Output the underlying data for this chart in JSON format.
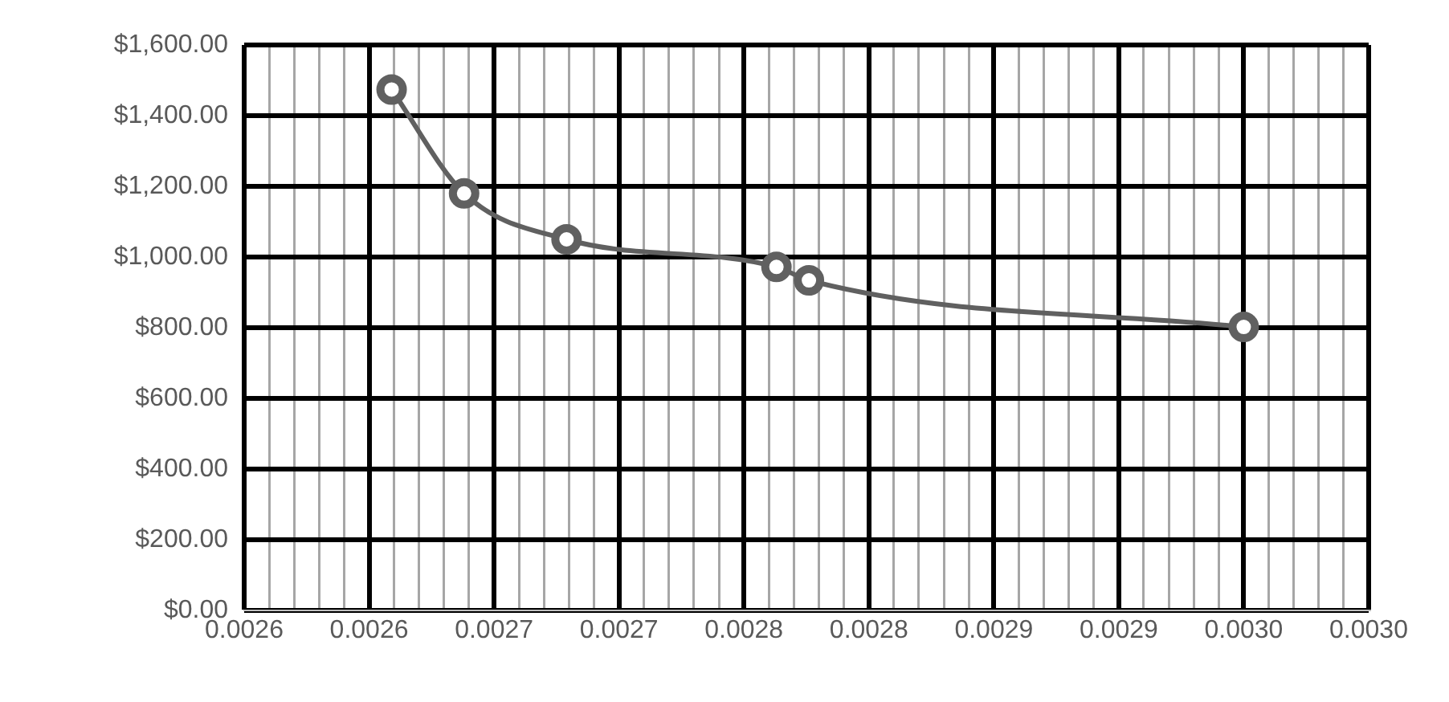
{
  "chart_data": {
    "type": "line",
    "marker": "circle",
    "line_style": "solid",
    "grid": true,
    "legend": false,
    "x": [
      0.002609,
      0.002638,
      0.002679,
      0.002763,
      0.002776,
      0.00295
    ],
    "series": [
      {
        "color": "#606060",
        "values": [
          1474,
          1180,
          1050,
          972,
          934,
          802
        ]
      }
    ],
    "xlim": [
      0.00255,
      0.003
    ],
    "xticks": [
      {
        "value": 0.00255,
        "label": "0.0026"
      },
      {
        "value": 0.00256,
        "label": null
      },
      {
        "value": 0.00257,
        "label": null
      },
      {
        "value": 0.00258,
        "label": null
      },
      {
        "value": 0.00259,
        "label": null
      },
      {
        "value": 0.0026,
        "label": "0.0026"
      },
      {
        "value": 0.00261,
        "label": null
      },
      {
        "value": 0.00262,
        "label": null
      },
      {
        "value": 0.00263,
        "label": null
      },
      {
        "value": 0.00264,
        "label": null
      },
      {
        "value": 0.00265,
        "label": "0.0027"
      },
      {
        "value": 0.00266,
        "label": null
      },
      {
        "value": 0.00267,
        "label": null
      },
      {
        "value": 0.00268,
        "label": null
      },
      {
        "value": 0.00269,
        "label": null
      },
      {
        "value": 0.0027,
        "label": "0.0027"
      },
      {
        "value": 0.00271,
        "label": null
      },
      {
        "value": 0.00272,
        "label": null
      },
      {
        "value": 0.00273,
        "label": null
      },
      {
        "value": 0.00274,
        "label": null
      },
      {
        "value": 0.00275,
        "label": "0.0028"
      },
      {
        "value": 0.00276,
        "label": null
      },
      {
        "value": 0.00277,
        "label": null
      },
      {
        "value": 0.00278,
        "label": null
      },
      {
        "value": 0.00279,
        "label": null
      },
      {
        "value": 0.0028,
        "label": "0.0028"
      },
      {
        "value": 0.00281,
        "label": null
      },
      {
        "value": 0.00282,
        "label": null
      },
      {
        "value": 0.00283,
        "label": null
      },
      {
        "value": 0.00284,
        "label": null
      },
      {
        "value": 0.00285,
        "label": "0.0029"
      },
      {
        "value": 0.00286,
        "label": null
      },
      {
        "value": 0.00287,
        "label": null
      },
      {
        "value": 0.00288,
        "label": null
      },
      {
        "value": 0.00289,
        "label": null
      },
      {
        "value": 0.0029,
        "label": "0.0029"
      },
      {
        "value": 0.00291,
        "label": null
      },
      {
        "value": 0.00292,
        "label": null
      },
      {
        "value": 0.00293,
        "label": null
      },
      {
        "value": 0.00294,
        "label": null
      },
      {
        "value": 0.00295,
        "label": "0.0030"
      },
      {
        "value": 0.00296,
        "label": null
      },
      {
        "value": 0.00297,
        "label": null
      },
      {
        "value": 0.00298,
        "label": null
      },
      {
        "value": 0.00299,
        "label": null
      },
      {
        "value": 0.003,
        "label": "0.0030"
      }
    ],
    "ylim": [
      0,
      1600
    ],
    "yticks": [
      {
        "value": 0,
        "label": "$0.00"
      },
      {
        "value": 200,
        "label": "$200.00"
      },
      {
        "value": 400,
        "label": "$400.00"
      },
      {
        "value": 600,
        "label": "$600.00"
      },
      {
        "value": 800,
        "label": "$800.00"
      },
      {
        "value": 1000,
        "label": "$1,000.00"
      },
      {
        "value": 1200,
        "label": "$1,200.00"
      },
      {
        "value": 1400,
        "label": "$1,400.00"
      },
      {
        "value": 1600,
        "label": "$1,600.00"
      }
    ]
  }
}
